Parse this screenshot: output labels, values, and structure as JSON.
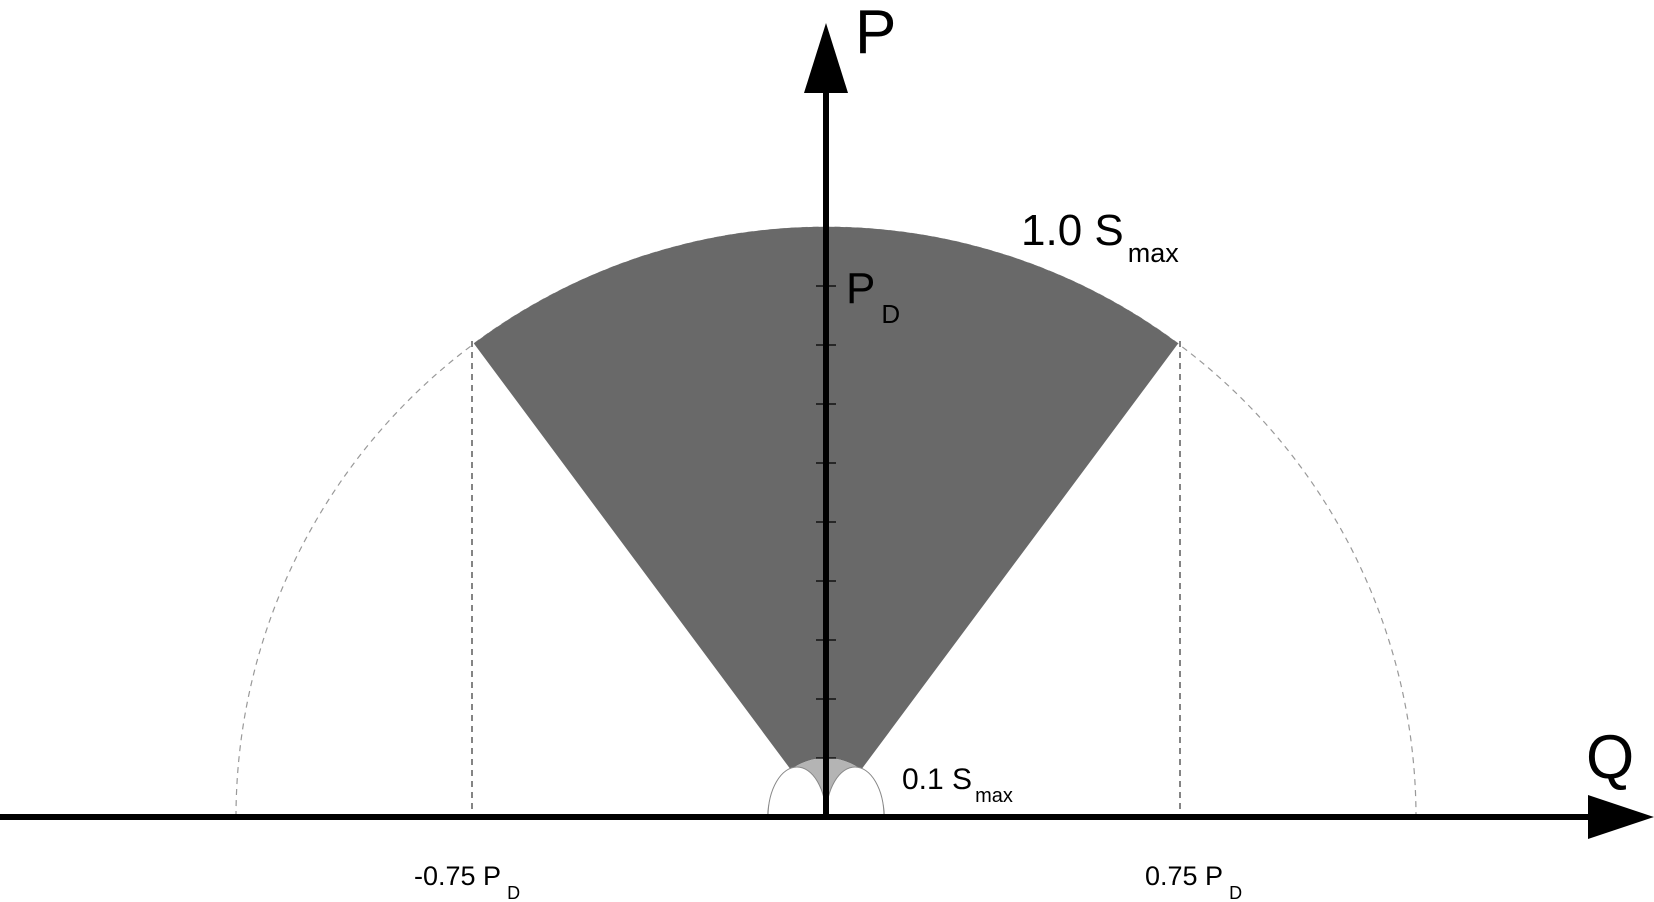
{
  "axes": {
    "vertical_label": "P",
    "horizontal_label": "Q"
  },
  "labels": {
    "outer_circle": {
      "main": "1.0 S",
      "sub": "max"
    },
    "inner_circle": {
      "main": "0.1 S",
      "sub": "max"
    },
    "p_d": {
      "main": "P",
      "sub": "D"
    },
    "neg_limit": {
      "main": "-0.75 P",
      "sub": "D"
    },
    "pos_limit": {
      "main": "0.75 P",
      "sub": "D"
    }
  },
  "colors": {
    "operating_region": "#696969",
    "inner_region": "#b4b4b4",
    "axis": "#000000",
    "dashed": "#999999"
  }
}
